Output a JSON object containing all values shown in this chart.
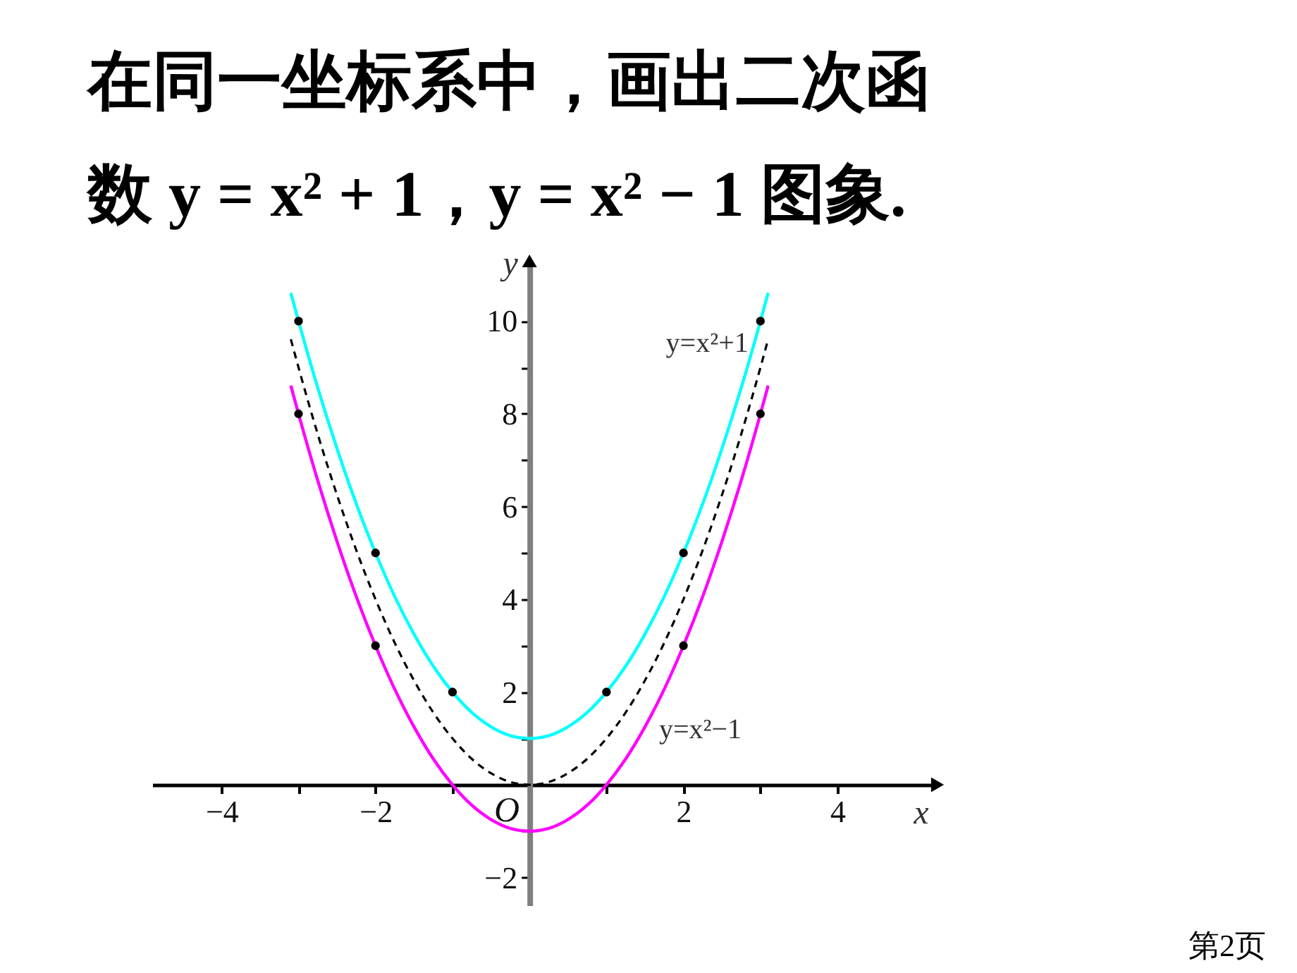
{
  "chart_data": {
    "type": "line",
    "title": "在同一坐标系中，画出二次函数 y = x² + 1，y = x² − 1 图象.",
    "xlabel": "x",
    "ylabel": "y",
    "xlim": [
      -4.9,
      5.3
    ],
    "ylim": [
      -2.6,
      11.3
    ],
    "xticks": [
      -4,
      {
        "value": -3,
        "label": null
      },
      -2,
      {
        "value": -1,
        "label": null
      },
      {
        "value": 1,
        "label": null
      },
      2,
      {
        "value": 3,
        "label": null
      },
      4
    ],
    "yticks": [
      -2,
      {
        "value": -1,
        "label": null
      },
      {
        "value": 1,
        "label": null
      },
      2,
      {
        "value": 3,
        "label": null
      },
      4,
      {
        "value": 5,
        "label": null
      },
      6,
      {
        "value": 7,
        "label": null
      },
      8,
      {
        "value": 9,
        "label": null
      },
      10
    ],
    "grid": false,
    "legend": false,
    "line_style": "solid",
    "series": [
      {
        "name": "y=x²+1",
        "type": "line",
        "color": "#00ffff",
        "x": [
          -3.1,
          -3,
          -2.75,
          -2.5,
          -2.25,
          -2,
          -1.75,
          -1.5,
          -1.25,
          -1,
          -0.75,
          -0.5,
          -0.25,
          0,
          0.25,
          0.5,
          0.75,
          1,
          1.25,
          1.5,
          1.75,
          2,
          2.25,
          2.5,
          2.75,
          3,
          3.1
        ],
        "values": [
          10.61,
          10,
          8.56,
          7.25,
          6.06,
          5,
          4.06,
          3.25,
          2.56,
          2,
          1.56,
          1.25,
          1.06,
          1,
          1.06,
          1.25,
          1.56,
          2,
          2.56,
          3.25,
          4.06,
          5,
          6.06,
          7.25,
          8.56,
          10,
          10.61
        ]
      },
      {
        "type": "line",
        "color": "#000000",
        "line_style": "dashed",
        "x": [
          -3.1,
          -3,
          -2.75,
          -2.5,
          -2.25,
          -2,
          -1.75,
          -1.5,
          -1.25,
          -1,
          -0.75,
          -0.5,
          -0.25,
          0,
          0.25,
          0.5,
          0.75,
          1,
          1.25,
          1.5,
          1.75,
          2,
          2.25,
          2.5,
          2.75,
          3,
          3.1
        ],
        "values": [
          9.61,
          9,
          7.56,
          6.25,
          5.06,
          4,
          3.06,
          2.25,
          1.56,
          1,
          0.56,
          0.25,
          0.06,
          0,
          0.06,
          0.25,
          0.56,
          1,
          1.56,
          2.25,
          3.06,
          4,
          5.06,
          6.25,
          7.56,
          9,
          9.61
        ]
      },
      {
        "name": "y=x²−1",
        "type": "line",
        "color": "#ff00ff",
        "x": [
          -3.1,
          -3,
          -2.75,
          -2.5,
          -2.25,
          -2,
          -1.75,
          -1.5,
          -1.25,
          -1,
          -0.75,
          -0.5,
          -0.25,
          0,
          0.25,
          0.5,
          0.75,
          1,
          1.25,
          1.5,
          1.75,
          2,
          2.25,
          2.5,
          2.75,
          3,
          3.1
        ],
        "values": [
          8.61,
          8,
          6.56,
          5.25,
          4.06,
          3,
          2.06,
          1.25,
          0.56,
          0,
          -0.44,
          -0.75,
          -0.94,
          -1,
          -0.94,
          -0.75,
          -0.44,
          0,
          0.56,
          1.25,
          2.06,
          3,
          4.06,
          5.25,
          6.56,
          8,
          8.61
        ]
      },
      {
        "type": "scatter",
        "color": "#000000",
        "marker": "circle",
        "x": [
          -3,
          -2,
          -1,
          1,
          2,
          3
        ],
        "values": [
          10,
          5,
          2,
          2,
          5,
          10
        ]
      },
      {
        "type": "scatter",
        "color": "#000000",
        "marker": "circle",
        "x": [
          -3,
          -2,
          2,
          3
        ],
        "values": [
          8,
          3,
          3,
          8
        ]
      }
    ],
    "annotations": [
      {
        "text": "O",
        "x": 0,
        "y": 0
      },
      "第2页"
    ]
  }
}
